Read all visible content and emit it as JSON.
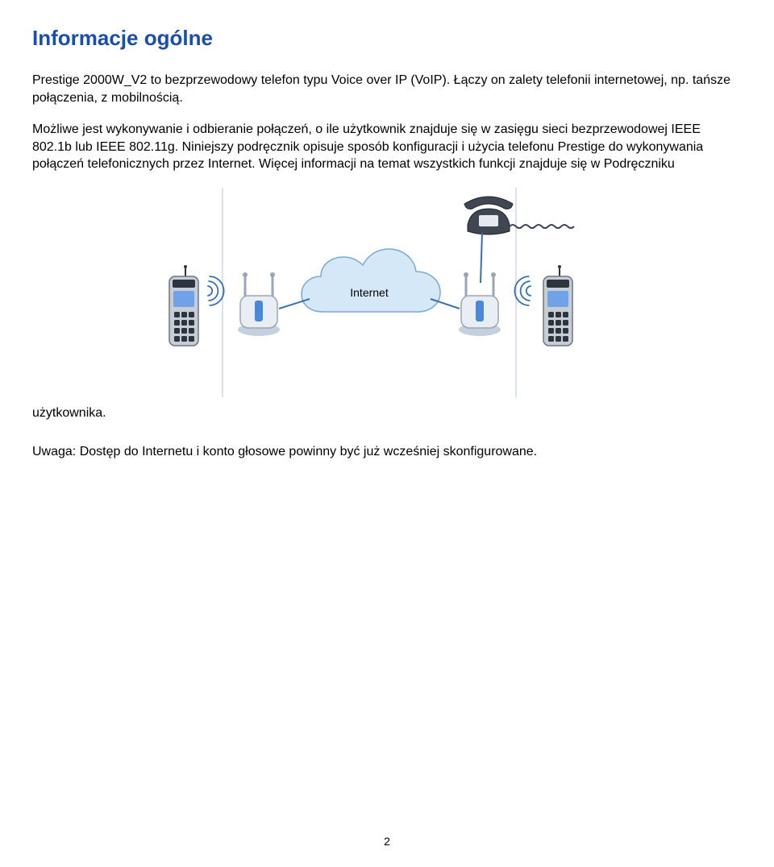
{
  "title": "Informacje ogólne",
  "para1": "Prestige 2000W_V2 to bezprzewodowy telefon typu Voice over IP (VoIP). Łączy on zalety telefonii internetowej, np. tańsze połączenia, z mobilnością.",
  "para2": "Możliwe jest wykonywanie i odbieranie połączeń, o ile użytkownik znajduje się w zasięgu sieci bezprzewodowej IEEE 802.1b lub IEEE 802.11g. Niniejszy podręcznik opisuje sposób konfiguracji i użycia telefonu Prestige do wykonywania połączeń telefonicznych przez Internet. Więcej informacji na temat wszystkich funkcji znajduje się w Podręczniku",
  "handbook_word": "użytkownika.",
  "note": "Uwaga: Dostęp do Internetu i konto głosowe powinny być już wcześniej skonfigurowane.",
  "page_number": "2",
  "diagram": {
    "internet_label": "Internet",
    "cloud_fill": "#d4e8f8",
    "cloud_stroke": "#7aa8d4",
    "phone_body": "#c8cdd4",
    "phone_screen": "#6fa2e8",
    "phone_dark": "#2e3540",
    "ap_body": "#e8eef4",
    "ap_led": "#4a88d8",
    "ap_antenna": "#9aa6b4",
    "desk_phone": "#3f4752",
    "signal_color": "#3a6fad",
    "border_color": "#b6c4d6"
  }
}
